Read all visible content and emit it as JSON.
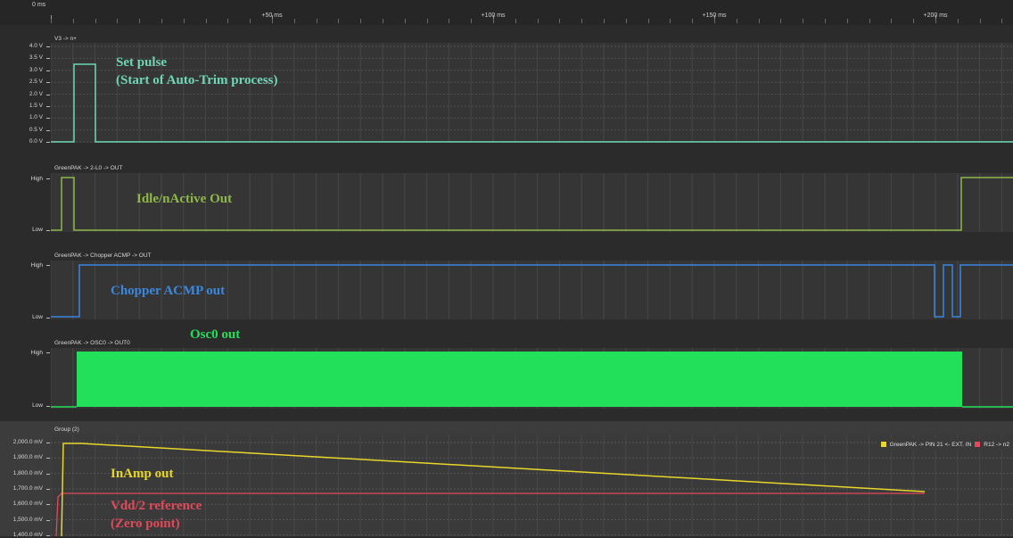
{
  "timeline": {
    "zero_label": "0 ms",
    "labels": [
      "+50 ms",
      "+100 ms",
      "+150 ms",
      "+200 ms"
    ]
  },
  "panels": {
    "v3": {
      "title": "V3 -> n+",
      "y_labels": [
        "4.0 V",
        "3.5 V",
        "3.0 V",
        "2.5 V",
        "2.0 V",
        "1.5 V",
        "1.0 V",
        "0.5 V",
        "0.0 V"
      ],
      "annotation_line1": "Set pulse",
      "annotation_line2": "(Start of Auto-Trim process)",
      "color": "#6fd6b6"
    },
    "idle": {
      "title": "GreenPAK -> 2-L0 -> OUT",
      "y_high": "High",
      "y_low": "Low",
      "annotation": "Idle/nActive Out",
      "color": "#8fb84a"
    },
    "chopper": {
      "title": "GreenPAK -> Chopper ACMP -> OUT",
      "y_high": "High",
      "y_low": "Low",
      "annotation": "Chopper ACMP out",
      "color": "#3a87e0"
    },
    "osc": {
      "title": "GreenPAK -> OSC0 -> OUT0",
      "y_high": "High",
      "y_low": "Low",
      "annotation": "Osc0 out",
      "color": "#22e05a"
    },
    "group": {
      "title": "Group (2)",
      "y_labels": [
        "2,000.0 mV",
        "1,900.0 mV",
        "1,800.0 mV",
        "1,700.0 mV",
        "1,600.0 mV",
        "1,500.0 mV",
        "1,400.0 mV"
      ],
      "annotation_inamp": "InAmp out",
      "annotation_ref_line1": "Vdd/2 reference",
      "annotation_ref_line2": "(Zero point)",
      "inamp_color": "#e8d62a",
      "ref_color": "#e04a5a",
      "legend": {
        "item1": "GreenPAK -> PIN 21 <- EXT. IN",
        "item2": "R12 -> n2"
      }
    }
  }
}
